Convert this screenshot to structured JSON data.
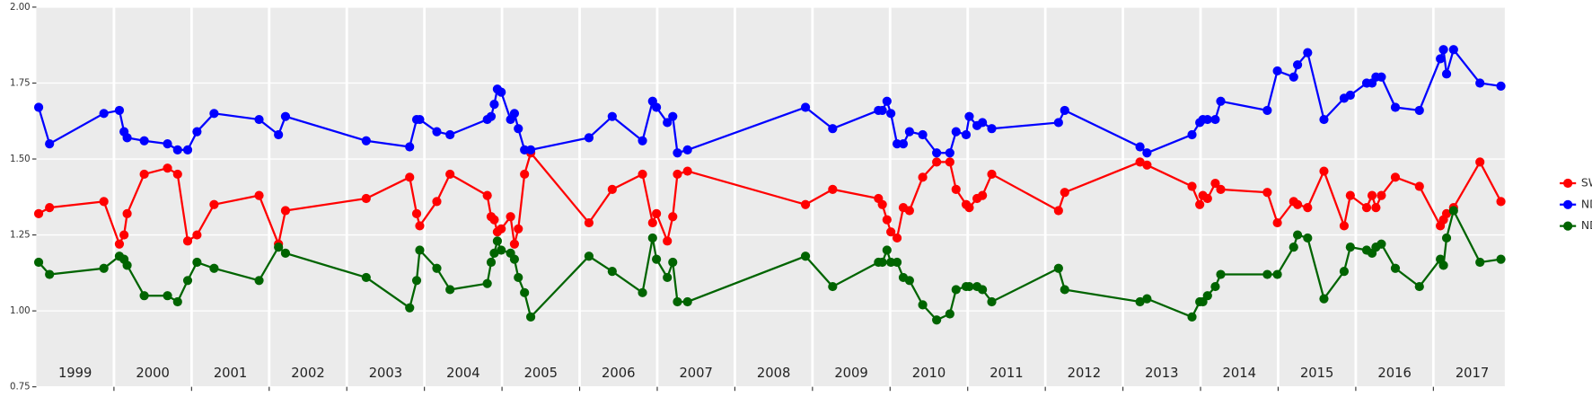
{
  "chart_data": {
    "type": "line",
    "x": [
      1999.03,
      1999.17,
      1999.87,
      2000.07,
      2000.13,
      2000.17,
      2000.39,
      2000.69,
      2000.82,
      2000.95,
      2001.07,
      2001.29,
      2001.87,
      2002.12,
      2002.21,
      2003.25,
      2003.81,
      2003.9,
      2003.94,
      2004.16,
      2004.33,
      2004.81,
      2004.86,
      2004.9,
      2004.94,
      2004.99,
      2005.11,
      2005.16,
      2005.21,
      2005.29,
      2005.37,
      2006.12,
      2006.42,
      2006.81,
      2006.94,
      2006.99,
      2007.13,
      2007.2,
      2007.26,
      2007.39,
      2008.91,
      2009.26,
      2009.85,
      2009.9,
      2009.96,
      2010.01,
      2010.09,
      2010.17,
      2010.25,
      2010.42,
      2010.6,
      2010.77,
      2010.85,
      2010.98,
      2011.02,
      2011.12,
      2011.19,
      2011.31,
      2012.17,
      2012.25,
      2013.22,
      2013.31,
      2013.89,
      2013.99,
      2014.03,
      2014.09,
      2014.19,
      2014.26,
      2014.86,
      2014.99,
      2015.2,
      2015.25,
      2015.38,
      2015.59,
      2015.85,
      2015.93,
      2016.14,
      2016.21,
      2016.26,
      2016.33,
      2016.51,
      2016.82,
      2017.09,
      2017.13,
      2017.17,
      2017.26,
      2017.6,
      2017.87
    ],
    "series": [
      {
        "name": "SWIR",
        "color": "#ff0000",
        "values": [
          1.32,
          1.34,
          1.36,
          1.22,
          1.25,
          1.32,
          1.45,
          1.47,
          1.45,
          1.23,
          1.25,
          1.35,
          1.38,
          1.22,
          1.33,
          1.37,
          1.44,
          1.32,
          1.28,
          1.36,
          1.45,
          1.38,
          1.31,
          1.3,
          1.26,
          1.27,
          1.31,
          1.22,
          1.27,
          1.45,
          1.52,
          1.29,
          1.4,
          1.45,
          1.29,
          1.32,
          1.23,
          1.31,
          1.45,
          1.46,
          1.35,
          1.4,
          1.37,
          1.35,
          1.3,
          1.26,
          1.24,
          1.34,
          1.33,
          1.44,
          1.49,
          1.49,
          1.4,
          1.35,
          1.34,
          1.37,
          1.38,
          1.45,
          1.33,
          1.39,
          1.49,
          1.48,
          1.41,
          1.35,
          1.38,
          1.37,
          1.42,
          1.4,
          1.39,
          1.29,
          1.36,
          1.35,
          1.34,
          1.46,
          1.28,
          1.38,
          1.34,
          1.38,
          1.34,
          1.38,
          1.44,
          1.41,
          1.28,
          1.3,
          1.32,
          1.34,
          1.49,
          1.36
        ]
      },
      {
        "name": "NDVI",
        "color": "#0000ff",
        "values": [
          1.67,
          1.55,
          1.65,
          1.66,
          1.59,
          1.57,
          1.56,
          1.55,
          1.53,
          1.53,
          1.59,
          1.65,
          1.63,
          1.58,
          1.64,
          1.56,
          1.54,
          1.63,
          1.63,
          1.59,
          1.58,
          1.63,
          1.64,
          1.68,
          1.73,
          1.72,
          1.63,
          1.65,
          1.6,
          1.53,
          1.53,
          1.57,
          1.64,
          1.56,
          1.69,
          1.67,
          1.62,
          1.64,
          1.52,
          1.53,
          1.67,
          1.6,
          1.66,
          1.66,
          1.69,
          1.65,
          1.55,
          1.55,
          1.59,
          1.58,
          1.52,
          1.52,
          1.59,
          1.58,
          1.64,
          1.61,
          1.62,
          1.6,
          1.62,
          1.66,
          1.54,
          1.52,
          1.58,
          1.62,
          1.63,
          1.63,
          1.63,
          1.69,
          1.66,
          1.79,
          1.77,
          1.81,
          1.85,
          1.63,
          1.7,
          1.71,
          1.75,
          1.75,
          1.77,
          1.77,
          1.67,
          1.66,
          1.83,
          1.86,
          1.78,
          1.86,
          1.75,
          1.74
        ]
      },
      {
        "name": "NDWI",
        "color": "#006400",
        "values": [
          1.16,
          1.12,
          1.14,
          1.18,
          1.17,
          1.15,
          1.05,
          1.05,
          1.03,
          1.1,
          1.16,
          1.14,
          1.1,
          1.21,
          1.19,
          1.11,
          1.01,
          1.1,
          1.2,
          1.14,
          1.07,
          1.09,
          1.16,
          1.19,
          1.23,
          1.2,
          1.19,
          1.17,
          1.11,
          1.06,
          0.98,
          1.18,
          1.13,
          1.06,
          1.24,
          1.17,
          1.11,
          1.16,
          1.03,
          1.03,
          1.18,
          1.08,
          1.16,
          1.16,
          1.2,
          1.16,
          1.16,
          1.11,
          1.1,
          1.02,
          0.97,
          0.99,
          1.07,
          1.08,
          1.08,
          1.08,
          1.07,
          1.03,
          1.14,
          1.07,
          1.03,
          1.04,
          0.98,
          1.03,
          1.03,
          1.05,
          1.08,
          1.12,
          1.12,
          1.12,
          1.21,
          1.25,
          1.24,
          1.04,
          1.13,
          1.21,
          1.2,
          1.19,
          1.21,
          1.22,
          1.14,
          1.08,
          1.17,
          1.15,
          1.24,
          1.33,
          1.16,
          1.17
        ]
      }
    ],
    "xlim": [
      1999.0,
      2017.92
    ],
    "xticks": [
      2000,
      2001,
      2002,
      2003,
      2004,
      2005,
      2006,
      2007,
      2008,
      2009,
      2010,
      2011,
      2012,
      2013,
      2014,
      2015,
      2016,
      2017
    ],
    "year_labels": [
      {
        "value": 1999.5,
        "label": "1999"
      },
      {
        "value": 2000.5,
        "label": "2000"
      },
      {
        "value": 2001.5,
        "label": "2001"
      },
      {
        "value": 2002.5,
        "label": "2002"
      },
      {
        "value": 2003.5,
        "label": "2003"
      },
      {
        "value": 2004.5,
        "label": "2004"
      },
      {
        "value": 2005.5,
        "label": "2005"
      },
      {
        "value": 2006.5,
        "label": "2006"
      },
      {
        "value": 2007.5,
        "label": "2007"
      },
      {
        "value": 2008.5,
        "label": "2008"
      },
      {
        "value": 2009.5,
        "label": "2009"
      },
      {
        "value": 2010.5,
        "label": "2010"
      },
      {
        "value": 2011.5,
        "label": "2011"
      },
      {
        "value": 2012.5,
        "label": "2012"
      },
      {
        "value": 2013.5,
        "label": "2013"
      },
      {
        "value": 2014.5,
        "label": "2014"
      },
      {
        "value": 2015.5,
        "label": "2015"
      },
      {
        "value": 2016.5,
        "label": "2016"
      },
      {
        "value": 2017.5,
        "label": "2017"
      }
    ],
    "ylim": [
      0.75,
      2.0
    ],
    "yticks": [
      {
        "value": 0.75,
        "label": "0.75"
      },
      {
        "value": 1.0,
        "label": "1.00"
      },
      {
        "value": 1.25,
        "label": "1.25"
      },
      {
        "value": 1.5,
        "label": "1.50"
      },
      {
        "value": 1.75,
        "label": "1.75"
      },
      {
        "value": 2.0,
        "label": "2.00"
      }
    ],
    "grid": true,
    "legend": "right"
  }
}
